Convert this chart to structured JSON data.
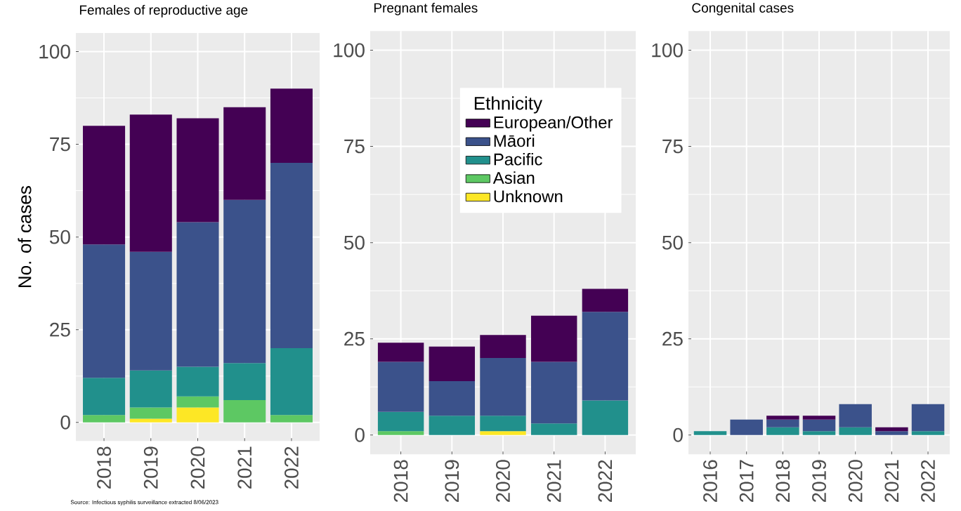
{
  "chart_data": [
    {
      "type": "bar",
      "stacked": true,
      "title": "Females of reproductive age",
      "ylabel": "No. of cases",
      "categories": [
        "2018",
        "2019",
        "2020",
        "2021",
        "2022"
      ],
      "series": [
        {
          "color": "#fde725",
          "values": [
            null,
            1,
            4,
            null,
            null
          ]
        },
        {
          "color": "#5dc863",
          "values": [
            2,
            3,
            3,
            6,
            2
          ]
        },
        {
          "color": "#21908c",
          "values": [
            10,
            10,
            8,
            10,
            18
          ]
        },
        {
          "color": "#3b528b",
          "values": [
            36,
            32,
            39,
            44,
            50
          ]
        },
        {
          "color": "#440154",
          "values": [
            32,
            37,
            28,
            25,
            20
          ]
        }
      ],
      "ylim": [
        -5,
        105
      ],
      "yticks": [
        0,
        25,
        50,
        75,
        100
      ],
      "grid": true,
      "annotations": [
        "Source: Infectious syphilis surveillance extracted 8/06/2023"
      ]
    },
    {
      "type": "bar",
      "stacked": true,
      "title": "Pregnant females",
      "categories": [
        "2018",
        "2019",
        "2020",
        "2021",
        "2022"
      ],
      "series": [
        {
          "name": "Unknown",
          "color": "#fde725",
          "values": [
            null,
            null,
            1,
            null,
            null
          ]
        },
        {
          "name": "Asian",
          "color": "#5dc863",
          "values": [
            1,
            null,
            null,
            null,
            null
          ]
        },
        {
          "name": "Pacific",
          "color": "#21908c",
          "values": [
            5,
            5,
            4,
            3,
            9
          ]
        },
        {
          "name": "Māori",
          "color": "#3b528b",
          "values": [
            13,
            9,
            15,
            16,
            23
          ]
        },
        {
          "name": "European/Other",
          "color": "#440154",
          "values": [
            5,
            9,
            6,
            12,
            6
          ]
        }
      ],
      "ylim": [
        -5,
        105
      ],
      "yticks": [
        0,
        25,
        50,
        75,
        100
      ],
      "grid": true,
      "legend": "top right",
      "legend_title": "Ethnicity"
    },
    {
      "type": "bar",
      "stacked": true,
      "title": "Congenital cases",
      "categories": [
        "2016",
        "2017",
        "2018",
        "2019",
        "2020",
        "2021",
        "2022"
      ],
      "series": [
        {
          "color": "#21908c",
          "values": [
            1,
            null,
            2,
            1,
            2,
            null,
            1
          ]
        },
        {
          "color": "#3b528b",
          "values": [
            null,
            4,
            2,
            3,
            6,
            1,
            7
          ]
        },
        {
          "color": "#440154",
          "values": [
            null,
            null,
            1,
            1,
            null,
            1,
            null
          ]
        }
      ],
      "ylim": [
        -5,
        105
      ],
      "yticks": [
        0,
        25,
        50,
        75,
        100
      ],
      "grid": true
    }
  ]
}
